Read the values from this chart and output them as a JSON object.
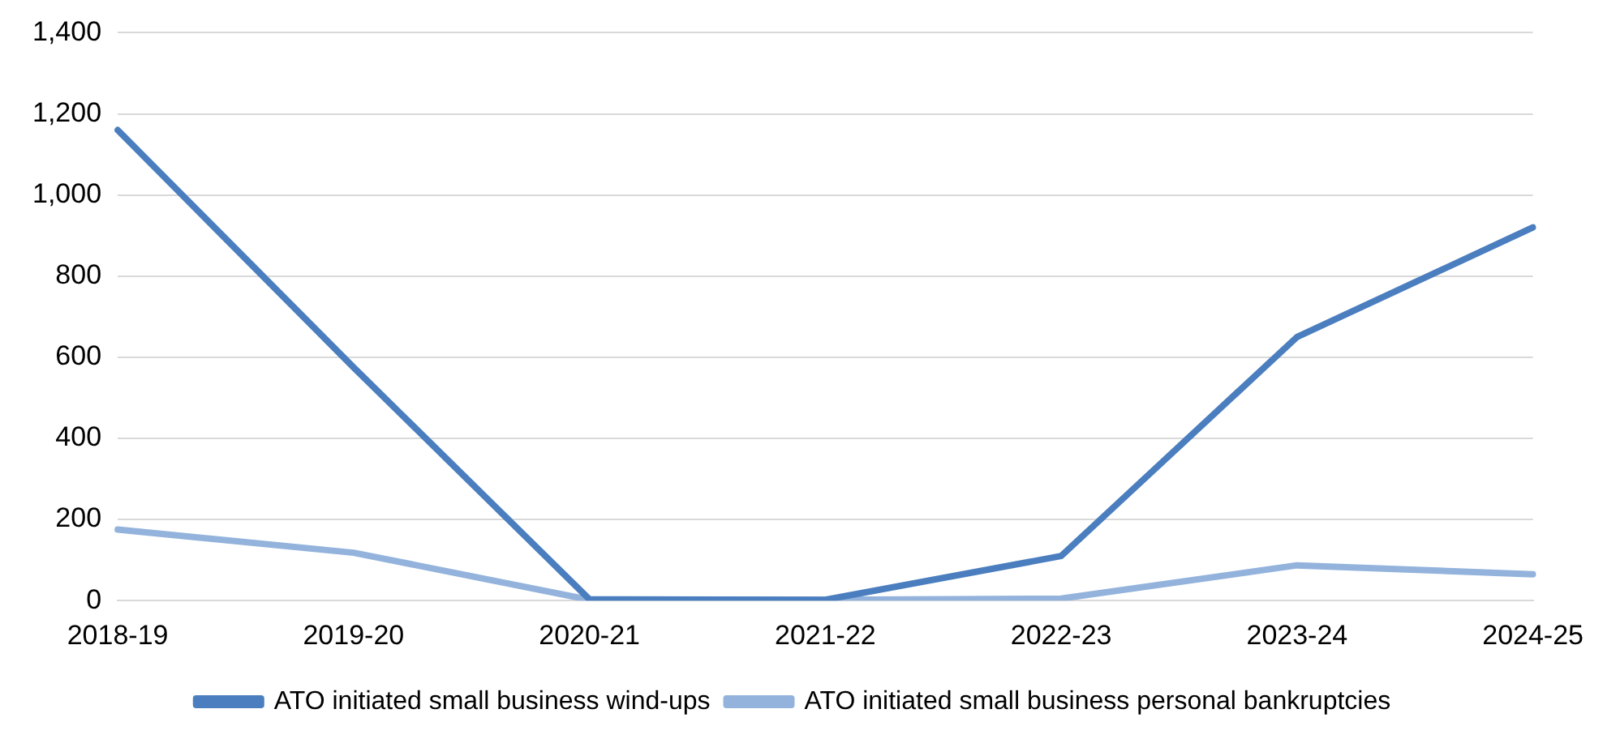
{
  "chart_data": {
    "type": "line",
    "categories": [
      "2018-19",
      "2019-20",
      "2020-21",
      "2021-22",
      "2022-23",
      "2023-24",
      "2024-25"
    ],
    "series": [
      {
        "name": "ATO initiated small business wind-ups",
        "color": "#4a7ebf",
        "values": [
          1160,
          575,
          3,
          2,
          110,
          650,
          920
        ]
      },
      {
        "name": "ATO initiated small business personal bankruptcies",
        "color": "#93b3dc",
        "values": [
          175,
          118,
          2,
          2,
          5,
          87,
          65
        ]
      }
    ],
    "ylim": [
      0,
      1400
    ],
    "yticks": [
      {
        "value": 0,
        "label": "0"
      },
      {
        "value": 200,
        "label": "200"
      },
      {
        "value": 400,
        "label": "400"
      },
      {
        "value": 600,
        "label": "600"
      },
      {
        "value": 800,
        "label": "800"
      },
      {
        "value": 1000,
        "label": "1,000"
      },
      {
        "value": 1200,
        "label": "1,200"
      },
      {
        "value": 1400,
        "label": "1,400"
      }
    ],
    "grid": "y",
    "legend": "bottom",
    "marker": "none",
    "line_style": "solid"
  }
}
